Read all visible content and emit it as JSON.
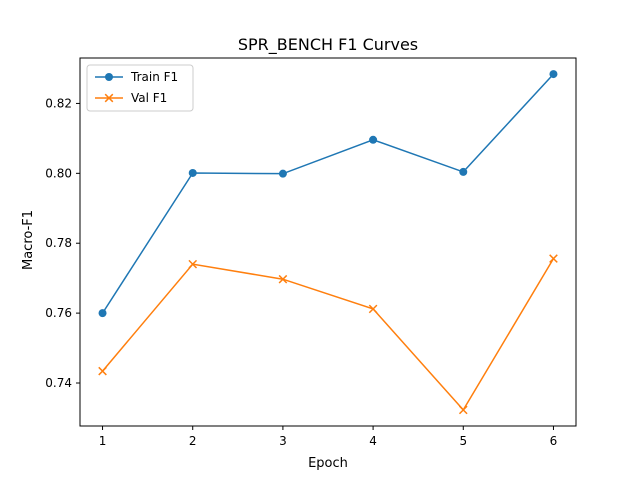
{
  "chart_data": {
    "type": "line",
    "title": "SPR_BENCH F1 Curves",
    "xlabel": "Epoch",
    "ylabel": "Macro-F1",
    "x": [
      1,
      2,
      3,
      4,
      5,
      6
    ],
    "xticks": [
      "1",
      "2",
      "3",
      "4",
      "5",
      "6"
    ],
    "yticks": [
      "0.74",
      "0.76",
      "0.78",
      "0.80",
      "0.82"
    ],
    "xlim": [
      0.75,
      6.25
    ],
    "ylim": [
      0.7277,
      0.833
    ],
    "grid": false,
    "legend_position": "top-left",
    "series": [
      {
        "name": "Train F1",
        "values": [
          0.76,
          0.8001,
          0.7999,
          0.8096,
          0.8004,
          0.8284
        ],
        "color": "#1f77b4",
        "marker": "circle"
      },
      {
        "name": "Val F1",
        "values": [
          0.7434,
          0.774,
          0.7697,
          0.7612,
          0.7323,
          0.7756
        ],
        "color": "#ff7f0e",
        "marker": "x"
      }
    ]
  }
}
